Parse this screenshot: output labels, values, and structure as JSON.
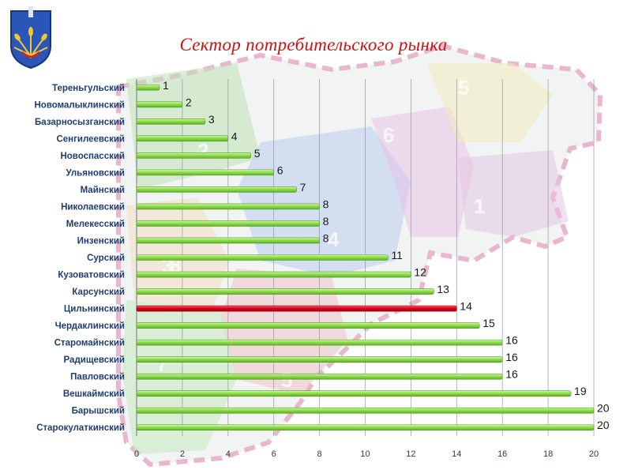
{
  "page": {
    "title": "Сектор потребительского рынка"
  },
  "map_region_numbers": [
    "1",
    "2",
    "3",
    "4",
    "5",
    "5",
    "6",
    "7",
    "8"
  ],
  "colors": {
    "bar": "#8fde4a",
    "bar_highlight": "#e0001a",
    "title": "#d01010",
    "label": "#1f3c73"
  },
  "icons": {
    "crest": "coat-of-arms-icon"
  },
  "chart_data": {
    "type": "bar",
    "orientation": "horizontal",
    "title": "",
    "xlabel": "",
    "ylabel": "",
    "categories": [
      "Тереньгульский",
      "Новомалыклинский",
      "Базарносызганский",
      "Сенгилеевский",
      "Новоспасский",
      "Ульяновский",
      "Майнский",
      "Николаевский",
      "Мелекесский",
      "Инзенский",
      "Сурский",
      "Кузоватовский",
      "Карсунский",
      "Цильнинский",
      "Чердаклинский",
      "Старомайнский",
      "Радищевский",
      "Павловский",
      "Вешкаймский",
      "Барышский",
      "Старокулаткинский"
    ],
    "values": [
      1,
      2,
      3,
      4,
      5,
      6,
      7,
      8,
      8,
      8,
      11,
      12,
      13,
      14,
      15,
      16,
      16,
      16,
      19,
      20,
      20
    ],
    "highlight": "Цильнинский",
    "xlim": [
      0,
      20
    ],
    "xticks": [
      "0",
      "2",
      "4",
      "6",
      "8",
      "10",
      "12",
      "14",
      "16",
      "18",
      "20"
    ],
    "grid": true,
    "legend": "none",
    "data_labels": true
  }
}
